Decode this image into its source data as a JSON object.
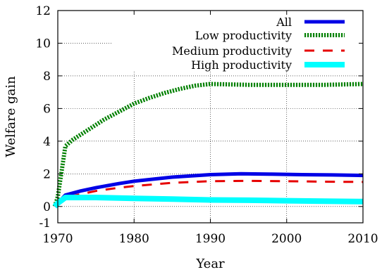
{
  "chart_data": {
    "type": "line",
    "title": "",
    "xlabel": "Year",
    "ylabel": "Welfare gain",
    "xlim": [
      1970,
      2010
    ],
    "ylim": [
      -1,
      12
    ],
    "xticks": [
      1970,
      1980,
      1990,
      2000,
      2010
    ],
    "yticks": [
      -1,
      0,
      2,
      4,
      6,
      8,
      10,
      12
    ],
    "grid": true,
    "legend_position": "top-right",
    "series": [
      {
        "name": "All",
        "color": "#0000e6",
        "style": "solid",
        "points": [
          [
            1969.6,
            0
          ],
          [
            1970,
            0.2
          ],
          [
            1971,
            0.7
          ],
          [
            1973,
            0.95
          ],
          [
            1975,
            1.15
          ],
          [
            1978,
            1.4
          ],
          [
            1980,
            1.55
          ],
          [
            1985,
            1.8
          ],
          [
            1990,
            1.95
          ],
          [
            1994,
            2.0
          ],
          [
            1998,
            1.98
          ],
          [
            2002,
            1.95
          ],
          [
            2006,
            1.93
          ],
          [
            2010,
            1.9
          ]
        ]
      },
      {
        "name": "Low productivity",
        "color": "#008000",
        "style": "dotted",
        "points": [
          [
            1969.6,
            0
          ],
          [
            1970,
            0.6
          ],
          [
            1971,
            3.7
          ],
          [
            1972,
            4.1
          ],
          [
            1974,
            4.7
          ],
          [
            1976,
            5.3
          ],
          [
            1978,
            5.8
          ],
          [
            1980,
            6.3
          ],
          [
            1982,
            6.65
          ],
          [
            1984,
            6.95
          ],
          [
            1986,
            7.2
          ],
          [
            1988,
            7.4
          ],
          [
            1990,
            7.5
          ],
          [
            1995,
            7.45
          ],
          [
            2000,
            7.45
          ],
          [
            2005,
            7.45
          ],
          [
            2010,
            7.5
          ]
        ]
      },
      {
        "name": "Medium productivity",
        "color": "#e60000",
        "style": "dashed",
        "points": [
          [
            1969.6,
            0
          ],
          [
            1970,
            0.2
          ],
          [
            1971,
            0.55
          ],
          [
            1973,
            0.75
          ],
          [
            1975,
            0.95
          ],
          [
            1978,
            1.15
          ],
          [
            1980,
            1.25
          ],
          [
            1985,
            1.45
          ],
          [
            1990,
            1.55
          ],
          [
            1995,
            1.57
          ],
          [
            2000,
            1.55
          ],
          [
            2005,
            1.52
          ],
          [
            2010,
            1.5
          ]
        ]
      },
      {
        "name": "High productivity",
        "color": "#00ffff",
        "style": "solid",
        "points": [
          [
            1969.6,
            0
          ],
          [
            1970,
            0.2
          ],
          [
            1971,
            0.55
          ],
          [
            1975,
            0.55
          ],
          [
            1980,
            0.5
          ],
          [
            1985,
            0.45
          ],
          [
            1990,
            0.4
          ],
          [
            1995,
            0.38
          ],
          [
            2000,
            0.35
          ],
          [
            2005,
            0.32
          ],
          [
            2010,
            0.3
          ]
        ]
      }
    ]
  }
}
